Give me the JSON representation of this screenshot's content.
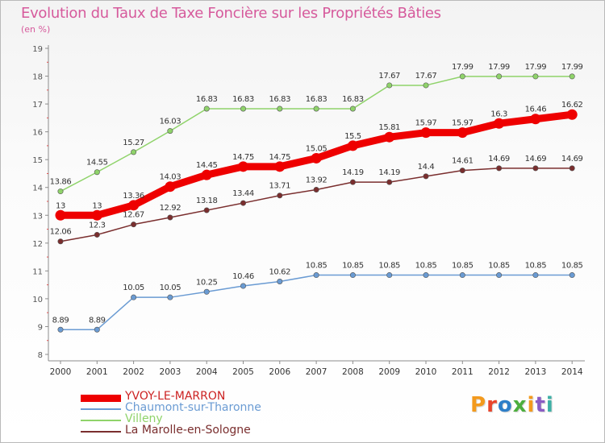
{
  "title": "Evolution du Taux de Taxe Foncière sur les Propriétés Bâties",
  "subtitle": "(en %)",
  "logo_text": "Proxiti",
  "chart_data": {
    "type": "line",
    "x": [
      "2000",
      "2001",
      "2002",
      "2003",
      "2004",
      "2005",
      "2006",
      "2007",
      "2008",
      "2009",
      "2010",
      "2011",
      "2012",
      "2013",
      "2014"
    ],
    "ylim": [
      8,
      19
    ],
    "yticks": [
      8,
      9,
      10,
      11,
      12,
      13,
      14,
      15,
      16,
      17,
      18,
      19
    ],
    "grid": false,
    "legend_position": "bottom-left",
    "series": [
      {
        "name": "YVOY-LE-MARRON",
        "color": "#ee0000",
        "values": [
          13,
          13,
          13.36,
          14.03,
          14.45,
          14.75,
          14.75,
          15.05,
          15.5,
          15.81,
          15.97,
          15.97,
          16.3,
          16.46,
          16.62
        ],
        "labels": [
          "13",
          "13",
          "13.36",
          "14.03",
          "14.45",
          "14.75",
          "14.75",
          "15.05",
          "15.5",
          "15.81",
          "15.97",
          "15.97",
          "16.3",
          "16.46",
          "16.62"
        ]
      },
      {
        "name": "Chaumont-sur-Tharonne",
        "color": "#6a9bd3",
        "values": [
          8.89,
          8.89,
          10.05,
          10.05,
          10.25,
          10.46,
          10.62,
          10.85,
          10.85,
          10.85,
          10.85,
          10.85,
          10.85,
          10.85,
          10.85
        ],
        "labels": [
          "8.89",
          "8.89",
          "10.05",
          "10.05",
          "10.25",
          "10.46",
          "10.62",
          "10.85",
          "10.85",
          "10.85",
          "10.85",
          "10.85",
          "10.85",
          "10.85",
          "10.85"
        ]
      },
      {
        "name": "Villeny",
        "color": "#8fd36a",
        "values": [
          13.86,
          14.55,
          15.27,
          16.03,
          16.83,
          16.83,
          16.83,
          16.83,
          16.83,
          17.67,
          17.67,
          17.99,
          17.99,
          17.99,
          17.99
        ],
        "labels": [
          "13.86",
          "14.55",
          "15.27",
          "16.03",
          "16.83",
          "16.83",
          "16.83",
          "16.83",
          "16.83",
          "17.67",
          "17.67",
          "17.99",
          "17.99",
          "17.99",
          "17.99"
        ]
      },
      {
        "name": "La Marolle-en-Sologne",
        "color": "#7a2e2e",
        "values": [
          12.06,
          12.3,
          12.67,
          12.92,
          13.18,
          13.44,
          13.71,
          13.92,
          14.19,
          14.19,
          14.4,
          14.61,
          14.69,
          14.69,
          14.69
        ],
        "labels": [
          "12.06",
          "12.3",
          "12.67",
          "12.92",
          "13.18",
          "13.44",
          "13.71",
          "13.92",
          "14.19",
          "14.19",
          "14.4",
          "14.61",
          "14.69",
          "14.69",
          "14.69"
        ]
      }
    ]
  }
}
